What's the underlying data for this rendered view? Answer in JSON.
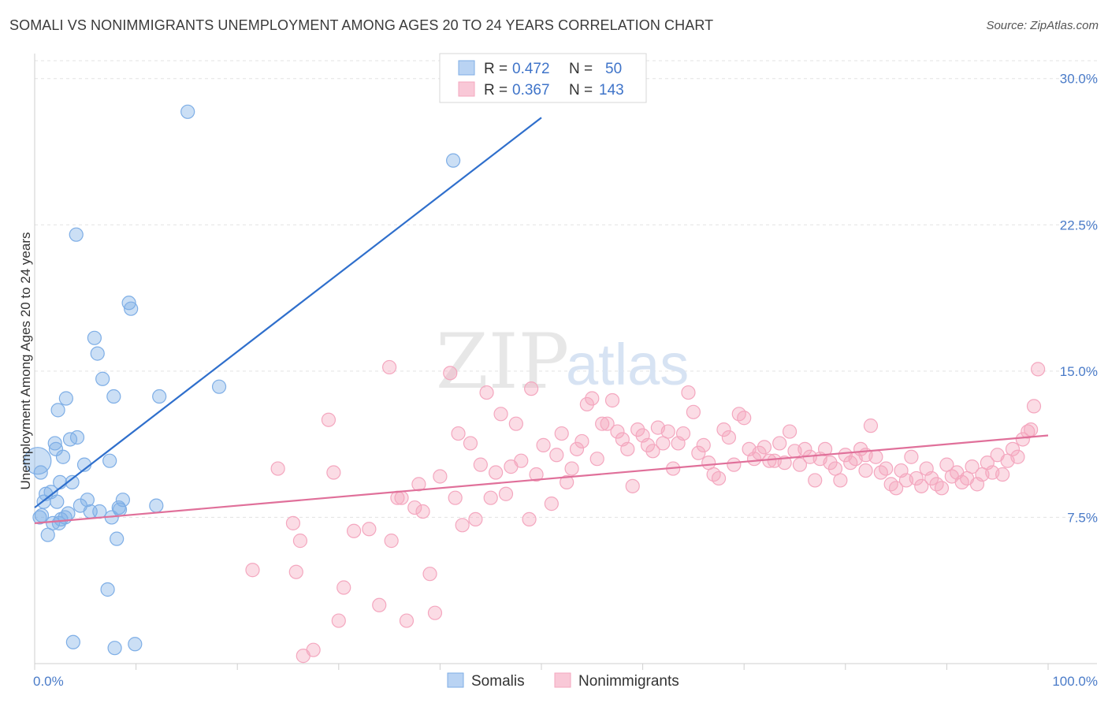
{
  "title": "SOMALI VS NONIMMIGRANTS UNEMPLOYMENT AMONG AGES 20 TO 24 YEARS CORRELATION CHART",
  "source": "Source: ZipAtlas.com",
  "watermark": {
    "zip": "ZIP",
    "atlas": "atlas"
  },
  "legend": {
    "somalis": {
      "r_label": "R =",
      "r_value": "0.472",
      "n_label": "N =",
      "n_value": "50"
    },
    "nonimmigrants": {
      "r_label": "R =",
      "r_value": "0.367",
      "n_label": "N =",
      "n_value": "143"
    }
  },
  "bottom_legend": [
    "Somalis",
    "Nonimmigrants"
  ],
  "chart_data": {
    "type": "scatter",
    "title": "SOMALI VS NONIMMIGRANTS UNEMPLOYMENT AMONG AGES 20 TO 24 YEARS CORRELATION CHART",
    "xlabel": "",
    "ylabel": "Unemployment Among Ages 20 to 24 years",
    "xlim": [
      0,
      100
    ],
    "ylim": [
      0,
      31
    ],
    "x_tick_labels": [
      "0.0%",
      "100.0%"
    ],
    "y_ticks": [
      7.5,
      15.0,
      22.5,
      30.0
    ],
    "y_tick_labels": [
      "7.5%",
      "15.0%",
      "22.5%",
      "30.0%"
    ],
    "grid": true,
    "legend_position": "top-center",
    "colors": {
      "somalis": "#7eaee6",
      "somalis_line": "#2f6fcc",
      "nonimmigrants": "#f4a7bf",
      "nonimmigrants_line": "#e0709a"
    },
    "series": [
      {
        "name": "Somalis",
        "trend": {
          "x0": 0,
          "y0": 8.0,
          "x1": 50,
          "y1": 28.0
        },
        "points": [
          [
            0.3,
            10.4
          ],
          [
            0.6,
            9.8
          ],
          [
            0.7,
            7.6
          ],
          [
            0.9,
            8.3
          ],
          [
            1.1,
            8.7
          ],
          [
            1.3,
            6.6
          ],
          [
            1.6,
            8.8
          ],
          [
            1.8,
            7.2
          ],
          [
            2.0,
            11.3
          ],
          [
            2.1,
            11.0
          ],
          [
            2.2,
            8.3
          ],
          [
            2.3,
            13.0
          ],
          [
            2.4,
            7.2
          ],
          [
            2.6,
            7.4
          ],
          [
            2.8,
            10.6
          ],
          [
            3.0,
            7.5
          ],
          [
            3.1,
            13.6
          ],
          [
            3.3,
            7.7
          ],
          [
            3.5,
            11.5
          ],
          [
            3.7,
            9.3
          ],
          [
            3.8,
            1.1
          ],
          [
            4.1,
            22.0
          ],
          [
            4.2,
            11.6
          ],
          [
            4.5,
            8.1
          ],
          [
            4.9,
            10.2
          ],
          [
            5.2,
            8.4
          ],
          [
            5.5,
            7.8
          ],
          [
            5.9,
            16.7
          ],
          [
            6.2,
            15.9
          ],
          [
            6.4,
            7.8
          ],
          [
            6.7,
            14.6
          ],
          [
            7.2,
            3.8
          ],
          [
            7.4,
            10.4
          ],
          [
            7.6,
            7.5
          ],
          [
            7.8,
            13.7
          ],
          [
            7.9,
            0.8
          ],
          [
            8.1,
            6.4
          ],
          [
            8.3,
            8.0
          ],
          [
            8.4,
            7.9
          ],
          [
            8.7,
            8.4
          ],
          [
            9.3,
            18.5
          ],
          [
            9.5,
            18.2
          ],
          [
            9.9,
            1.0
          ],
          [
            12.0,
            8.1
          ],
          [
            12.3,
            13.7
          ],
          [
            15.1,
            28.3
          ],
          [
            18.2,
            14.2
          ],
          [
            41.3,
            25.8
          ],
          [
            0.5,
            7.5
          ],
          [
            2.5,
            9.3
          ]
        ]
      },
      {
        "name": "Nonimmigrants",
        "trend": {
          "x0": 0,
          "y0": 7.2,
          "x1": 100,
          "y1": 11.7
        },
        "points": [
          [
            21.5,
            4.8
          ],
          [
            24.0,
            10.0
          ],
          [
            25.5,
            7.2
          ],
          [
            25.8,
            4.7
          ],
          [
            26.2,
            6.3
          ],
          [
            26.5,
            0.4
          ],
          [
            27.5,
            0.7
          ],
          [
            29.0,
            12.5
          ],
          [
            29.5,
            9.8
          ],
          [
            30.0,
            2.2
          ],
          [
            30.5,
            3.9
          ],
          [
            31.5,
            6.8
          ],
          [
            33.0,
            6.9
          ],
          [
            34.0,
            3.0
          ],
          [
            35.0,
            15.2
          ],
          [
            35.2,
            6.3
          ],
          [
            35.8,
            8.5
          ],
          [
            36.2,
            8.5
          ],
          [
            36.7,
            2.2
          ],
          [
            37.5,
            8.0
          ],
          [
            37.9,
            9.2
          ],
          [
            38.3,
            7.8
          ],
          [
            39.0,
            4.6
          ],
          [
            39.5,
            2.6
          ],
          [
            40.0,
            9.6
          ],
          [
            41.0,
            14.9
          ],
          [
            41.5,
            8.5
          ],
          [
            41.8,
            11.8
          ],
          [
            42.2,
            7.1
          ],
          [
            43.0,
            11.3
          ],
          [
            43.5,
            7.4
          ],
          [
            44.0,
            10.2
          ],
          [
            44.6,
            13.9
          ],
          [
            45.0,
            8.5
          ],
          [
            45.5,
            9.8
          ],
          [
            46.0,
            12.8
          ],
          [
            46.5,
            8.7
          ],
          [
            47.0,
            10.1
          ],
          [
            47.5,
            12.3
          ],
          [
            48.0,
            10.4
          ],
          [
            48.8,
            7.4
          ],
          [
            49.0,
            14.1
          ],
          [
            49.5,
            9.7
          ],
          [
            50.2,
            11.2
          ],
          [
            51.0,
            8.2
          ],
          [
            51.5,
            10.7
          ],
          [
            52.0,
            11.8
          ],
          [
            52.5,
            9.3
          ],
          [
            53.0,
            10.0
          ],
          [
            53.5,
            11.0
          ],
          [
            54.0,
            11.4
          ],
          [
            54.5,
            13.3
          ],
          [
            55.0,
            13.6
          ],
          [
            55.5,
            10.5
          ],
          [
            56.0,
            12.3
          ],
          [
            56.5,
            12.3
          ],
          [
            57.0,
            13.5
          ],
          [
            57.5,
            11.9
          ],
          [
            58.0,
            11.5
          ],
          [
            58.5,
            11.0
          ],
          [
            59.0,
            9.1
          ],
          [
            59.5,
            12.0
          ],
          [
            60.0,
            11.7
          ],
          [
            60.5,
            11.2
          ],
          [
            61.0,
            10.9
          ],
          [
            61.5,
            12.1
          ],
          [
            62.0,
            11.3
          ],
          [
            62.5,
            11.9
          ],
          [
            63.0,
            10.0
          ],
          [
            63.5,
            11.3
          ],
          [
            64.0,
            11.8
          ],
          [
            64.5,
            13.9
          ],
          [
            65.0,
            12.9
          ],
          [
            65.5,
            10.8
          ],
          [
            66.0,
            11.2
          ],
          [
            66.5,
            10.3
          ],
          [
            67.0,
            9.7
          ],
          [
            68.0,
            12.0
          ],
          [
            68.5,
            11.6
          ],
          [
            69.0,
            10.2
          ],
          [
            69.5,
            12.8
          ],
          [
            70.0,
            12.6
          ],
          [
            70.5,
            11.0
          ],
          [
            71.0,
            10.5
          ],
          [
            71.5,
            10.8
          ],
          [
            72.0,
            11.1
          ],
          [
            72.5,
            10.4
          ],
          [
            73.0,
            10.4
          ],
          [
            73.5,
            11.3
          ],
          [
            74.0,
            10.3
          ],
          [
            74.5,
            11.9
          ],
          [
            75.0,
            10.9
          ],
          [
            75.5,
            10.2
          ],
          [
            76.0,
            11.0
          ],
          [
            76.5,
            10.6
          ],
          [
            77.0,
            9.4
          ],
          [
            77.5,
            10.5
          ],
          [
            78.0,
            11.0
          ],
          [
            78.5,
            10.3
          ],
          [
            79.0,
            10.0
          ],
          [
            79.5,
            9.4
          ],
          [
            80.0,
            10.7
          ],
          [
            80.5,
            10.3
          ],
          [
            81.0,
            10.5
          ],
          [
            81.5,
            11.0
          ],
          [
            82.0,
            10.7
          ],
          [
            82.5,
            12.2
          ],
          [
            83.0,
            10.6
          ],
          [
            83.5,
            9.8
          ],
          [
            84.0,
            10.0
          ],
          [
            84.5,
            9.2
          ],
          [
            85.0,
            9.0
          ],
          [
            85.5,
            9.9
          ],
          [
            86.0,
            9.4
          ],
          [
            86.5,
            10.6
          ],
          [
            87.0,
            9.5
          ],
          [
            87.5,
            9.1
          ],
          [
            88.0,
            10.0
          ],
          [
            88.5,
            9.5
          ],
          [
            89.0,
            9.2
          ],
          [
            89.5,
            9.0
          ],
          [
            90.0,
            10.2
          ],
          [
            90.5,
            9.6
          ],
          [
            91.0,
            9.8
          ],
          [
            91.5,
            9.3
          ],
          [
            92.0,
            9.5
          ],
          [
            92.5,
            10.1
          ],
          [
            93.0,
            9.2
          ],
          [
            93.5,
            9.7
          ],
          [
            94.0,
            10.3
          ],
          [
            94.5,
            9.8
          ],
          [
            95.0,
            10.7
          ],
          [
            95.5,
            9.7
          ],
          [
            96.0,
            10.4
          ],
          [
            96.5,
            11.0
          ],
          [
            97.0,
            10.6
          ],
          [
            97.5,
            11.5
          ],
          [
            98.0,
            11.9
          ],
          [
            98.3,
            12.0
          ],
          [
            98.6,
            13.2
          ],
          [
            99.0,
            15.1
          ],
          [
            67.5,
            9.5
          ],
          [
            82.0,
            9.9
          ]
        ]
      }
    ]
  }
}
